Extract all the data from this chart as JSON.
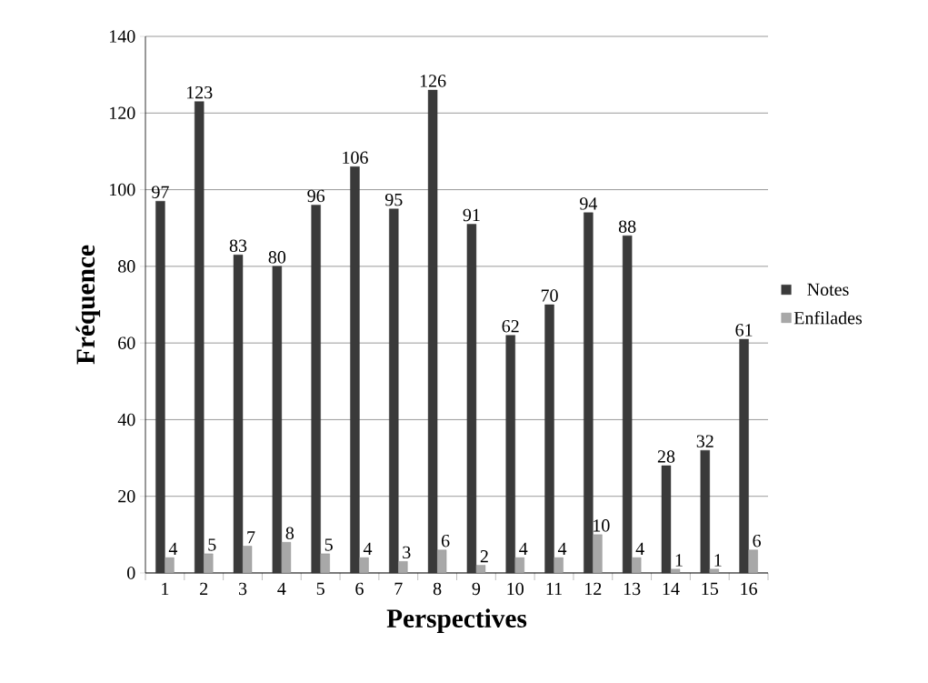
{
  "chart_data": {
    "type": "bar",
    "xlabel": "Perspectives",
    "ylabel": "Fréquence",
    "categories": [
      "1",
      "2",
      "3",
      "4",
      "5",
      "6",
      "7",
      "8",
      "9",
      "10",
      "11",
      "12",
      "13",
      "14",
      "15",
      "16"
    ],
    "series": [
      {
        "name": "Notes",
        "color": "#3a3a3a",
        "values": [
          97,
          123,
          83,
          80,
          96,
          106,
          95,
          126,
          91,
          62,
          70,
          94,
          88,
          28,
          32,
          61
        ]
      },
      {
        "name": "Enfilades",
        "color": "#a8a8a8",
        "values": [
          4,
          5,
          7,
          8,
          5,
          4,
          3,
          6,
          2,
          4,
          4,
          10,
          4,
          1,
          1,
          6
        ]
      }
    ],
    "ylim": [
      0,
      140
    ],
    "yticks": [
      0,
      20,
      40,
      60,
      80,
      100,
      120,
      140
    ],
    "grid": "y",
    "legend": "right",
    "data_labels": true
  }
}
